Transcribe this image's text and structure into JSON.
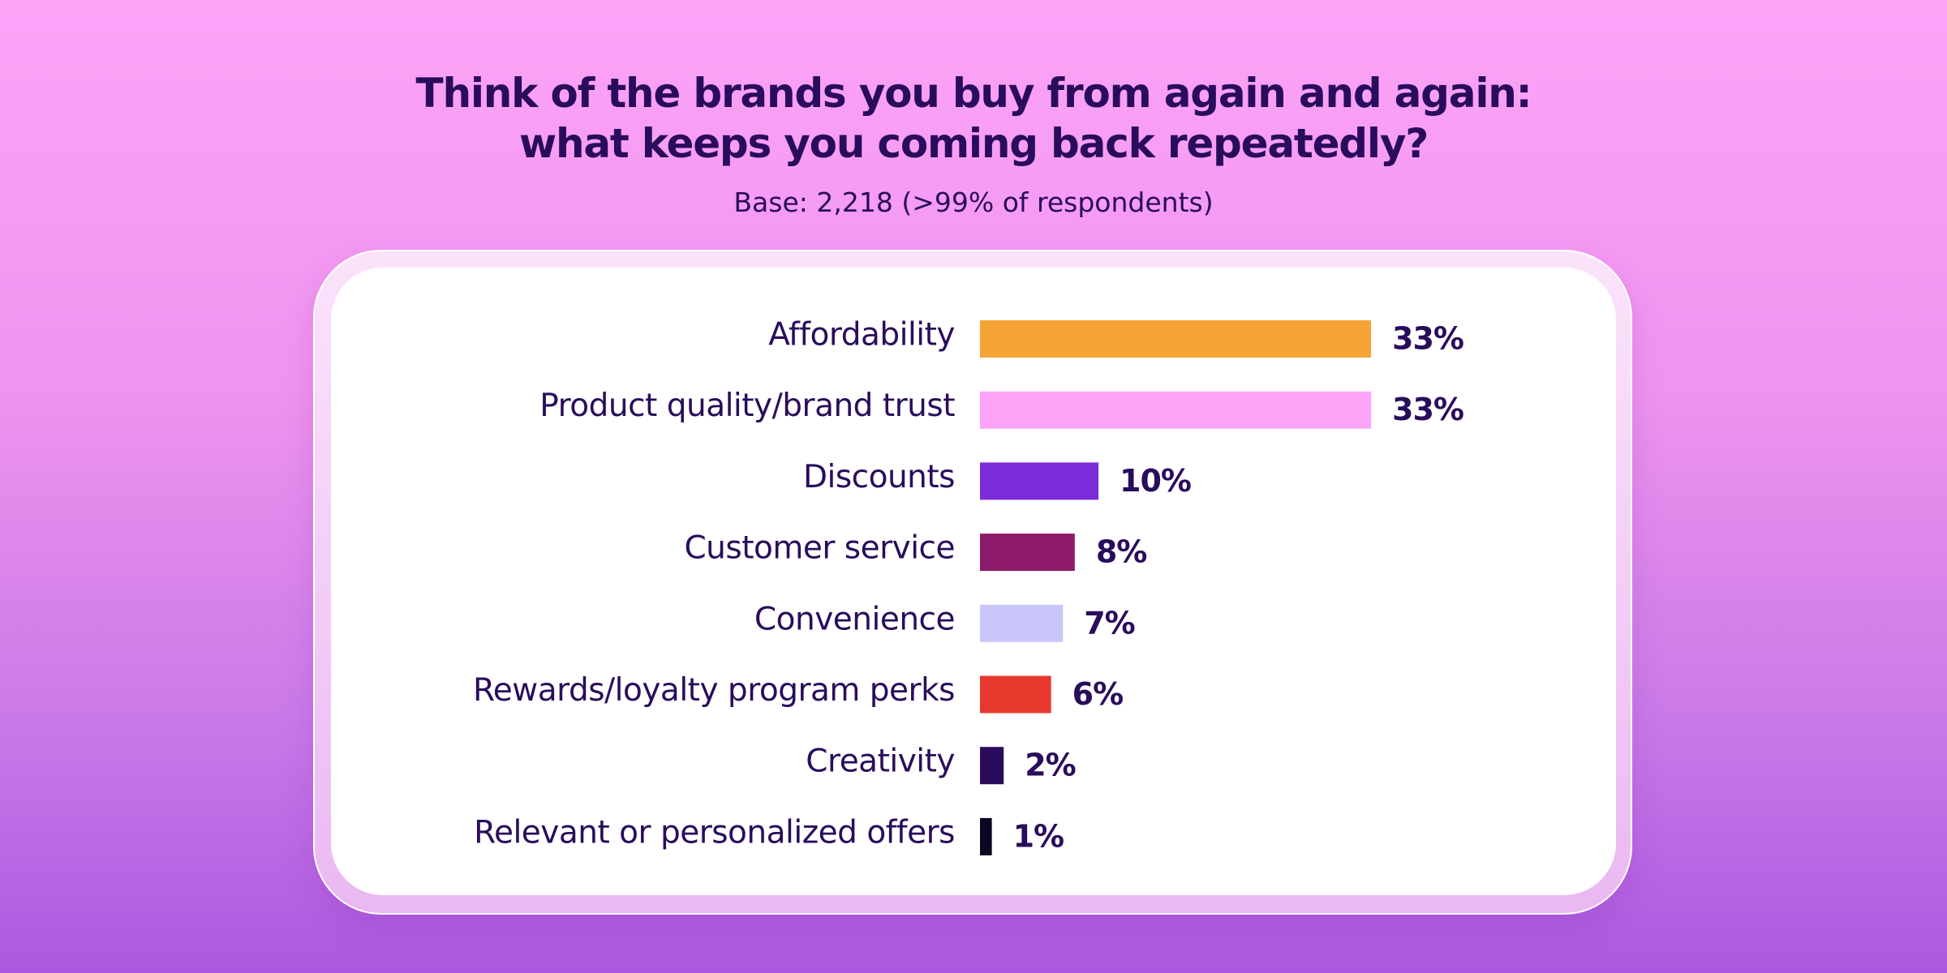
{
  "chart_data": {
    "type": "bar",
    "orientation": "horizontal",
    "title": "Think of the brands you buy from again and again: what keeps you coming back repeatedly?",
    "title_lines": [
      "Think of the brands you buy from again and again:",
      "what keeps you coming back repeatedly?"
    ],
    "subtitle": "Base: 2,218 (>99% of respondents)",
    "categories": [
      "Affordability",
      "Product quality/brand trust",
      "Discounts",
      "Customer service",
      "Convenience",
      "Rewards/loyalty program perks",
      "Creativity",
      "Relevant or personalized offers"
    ],
    "values": [
      33,
      33,
      10,
      8,
      7,
      6,
      2,
      1
    ],
    "value_labels": [
      "33%",
      "33%",
      "10%",
      "8%",
      "7%",
      "6%",
      "2%",
      "1%"
    ],
    "colors": [
      "#f7a436",
      "#fca4f8",
      "#7c2bd8",
      "#8e1a6b",
      "#c9c6fa",
      "#e6392e",
      "#2a0c5c",
      "#0c0620"
    ],
    "unit": "%",
    "xlim": [
      0,
      33
    ],
    "grid": false,
    "legend": "none"
  }
}
